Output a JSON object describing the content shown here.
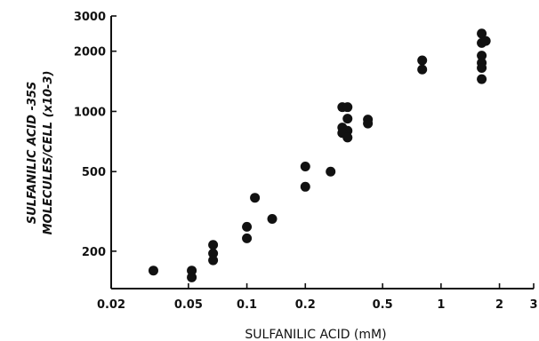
{
  "chart_data": {
    "type": "scatter",
    "x_scale": "log",
    "y_scale": "log",
    "xlim": [
      0.02,
      3
    ],
    "ylim": [
      130,
      3000
    ],
    "xlabel": "SULFANILIC ACID (mM)",
    "ylabel_line1": "SULFANILIC ACID -35S",
    "ylabel_line2": "MOLECULES/CELL (x10-3)",
    "x_ticks": [
      0.02,
      0.05,
      0.1,
      0.2,
      0.5,
      1,
      2,
      3
    ],
    "x_tick_labels": [
      "0.02",
      "0.05",
      "0.1",
      "0.2",
      "0.5",
      "1",
      "2",
      "3"
    ],
    "y_ticks": [
      200,
      500,
      1000,
      2000,
      3000
    ],
    "y_tick_labels": [
      "200",
      "500",
      "1000",
      "2000",
      "3000"
    ],
    "grid": false,
    "series": [
      {
        "points": [
          [
            0.033,
            160
          ],
          [
            0.052,
            160
          ],
          [
            0.052,
            148
          ],
          [
            0.067,
            215
          ],
          [
            0.067,
            195
          ],
          [
            0.067,
            180
          ],
          [
            0.1,
            265
          ],
          [
            0.1,
            232
          ],
          [
            0.11,
            370
          ],
          [
            0.135,
            290
          ],
          [
            0.2,
            530
          ],
          [
            0.2,
            420
          ],
          [
            0.27,
            500
          ],
          [
            0.31,
            1050
          ],
          [
            0.33,
            1050
          ],
          [
            0.33,
            920
          ],
          [
            0.31,
            830
          ],
          [
            0.33,
            800
          ],
          [
            0.31,
            780
          ],
          [
            0.33,
            740
          ],
          [
            0.42,
            910
          ],
          [
            0.42,
            870
          ],
          [
            0.8,
            1800
          ],
          [
            0.8,
            1620
          ],
          [
            1.62,
            2450
          ],
          [
            1.62,
            2200
          ],
          [
            1.7,
            2250
          ],
          [
            1.62,
            1900
          ],
          [
            1.62,
            1750
          ],
          [
            1.62,
            1650
          ],
          [
            1.62,
            1450
          ]
        ]
      }
    ]
  }
}
